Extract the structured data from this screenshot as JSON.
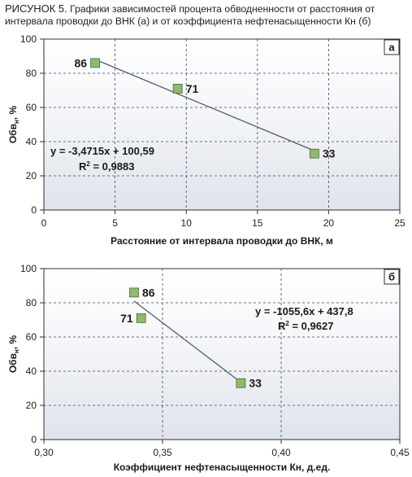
{
  "caption": {
    "lead": "РИСУНОК 5.",
    "text": " Графики зависимостей процента обводненности от расстояния от интервала проводки до ВНК (а) и от коэффициента нефтенасыщенности Кн (б)"
  },
  "colors": {
    "plot_top": "#ffffff",
    "plot_bottom": "#dfe3ea",
    "marker_fill": "#8fb96c",
    "marker_stroke": "#4d6b3a",
    "trend_line": "#555c6e",
    "grid": "#3c4660"
  },
  "chart_data": [
    {
      "type": "scatter",
      "panel_tag": "а",
      "xlabel": "Расстояние от интервала проводки до ВНК, м",
      "ylabel_main": "Обв",
      "ylabel_sub": "н",
      "ylabel_tail": ", %",
      "xlim": [
        0,
        25
      ],
      "ylim": [
        0,
        100
      ],
      "xticks": [
        0,
        5,
        10,
        15,
        20,
        25
      ],
      "xtick_labels": [
        "0",
        "5",
        "10",
        "15",
        "20",
        "25"
      ],
      "yticks": [
        0,
        20,
        40,
        60,
        80,
        100
      ],
      "ytick_labels": [
        "0",
        "20",
        "40",
        "60",
        "80",
        "100"
      ],
      "points": [
        {
          "x": 3.6,
          "y": 86,
          "label": "86",
          "label_side": "left"
        },
        {
          "x": 9.4,
          "y": 71,
          "label": "71",
          "label_side": "right"
        },
        {
          "x": 19.0,
          "y": 33,
          "label": "33",
          "label_side": "right"
        }
      ],
      "trendline": {
        "x": [
          3.6,
          19.0
        ],
        "slope": -3.4715,
        "intercept": 100.59
      },
      "equation": "y = -3,4715x + 100,59",
      "r2_label": "R",
      "r2_value": " = 0,9883",
      "grid": true
    },
    {
      "type": "scatter",
      "panel_tag": "б",
      "xlabel": "Коэффициент нефтенасыщенности Кн, д.ед.",
      "ylabel_main": "Обв",
      "ylabel_sub": "н",
      "ylabel_tail": ", %",
      "xlim": [
        0.3,
        0.45
      ],
      "ylim": [
        0,
        100
      ],
      "xticks": [
        0.3,
        0.35,
        0.4,
        0.45
      ],
      "xtick_labels": [
        "0,30",
        "0,35",
        "0,40",
        "0,45"
      ],
      "yticks": [
        0,
        20,
        40,
        60,
        80,
        100
      ],
      "ytick_labels": [
        "0",
        "20",
        "40",
        "60",
        "80",
        "100"
      ],
      "points": [
        {
          "x": 0.338,
          "y": 86,
          "label": "86",
          "label_side": "right"
        },
        {
          "x": 0.341,
          "y": 71,
          "label": "71",
          "label_side": "left"
        },
        {
          "x": 0.383,
          "y": 33,
          "label": "33",
          "label_side": "right"
        }
      ],
      "trendline": {
        "x": [
          0.338,
          0.383
        ],
        "slope": -1055.6,
        "intercept": 437.8
      },
      "equation": "y = -1055,6x + 437,8",
      "r2_label": "R",
      "r2_value": " = 0,9627",
      "grid": true
    }
  ]
}
